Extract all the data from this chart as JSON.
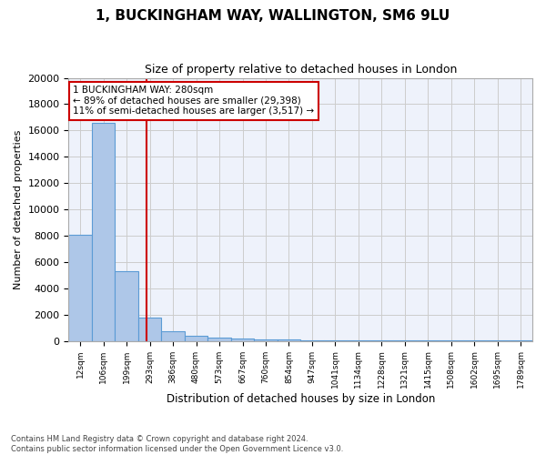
{
  "title": "1, BUCKINGHAM WAY, WALLINGTON, SM6 9LU",
  "subtitle": "Size of property relative to detached houses in London",
  "xlabel": "Distribution of detached houses by size in London",
  "ylabel": "Number of detached properties",
  "bar_values": [
    8100,
    16600,
    5300,
    1800,
    700,
    400,
    250,
    150,
    100,
    80,
    70,
    60,
    55,
    50,
    45,
    40,
    35,
    30,
    25,
    20
  ],
  "bar_labels": [
    "12sqm",
    "106sqm",
    "199sqm",
    "293sqm",
    "386sqm",
    "480sqm",
    "573sqm",
    "667sqm",
    "760sqm",
    "854sqm",
    "947sqm",
    "1041sqm",
    "1134sqm",
    "1228sqm",
    "1321sqm",
    "1415sqm",
    "1508sqm",
    "1602sqm",
    "1695sqm",
    "1789sqm"
  ],
  "bar_color": "#aec7e8",
  "bar_edge_color": "#5b9bd5",
  "vline_x": 2.85,
  "vline_color": "#cc0000",
  "annotation_text": "1 BUCKINGHAM WAY: 280sqm\n← 89% of detached houses are smaller (29,398)\n11% of semi-detached houses are larger (3,517) →",
  "annotation_box_color": "#cc0000",
  "bg_color": "#eef2fb",
  "grid_color": "#cccccc",
  "footer_text": "Contains HM Land Registry data © Crown copyright and database right 2024.\nContains public sector information licensed under the Open Government Licence v3.0.",
  "ylim": [
    0,
    20000
  ],
  "yticks": [
    0,
    2000,
    4000,
    6000,
    8000,
    10000,
    12000,
    14000,
    16000,
    18000,
    20000
  ]
}
